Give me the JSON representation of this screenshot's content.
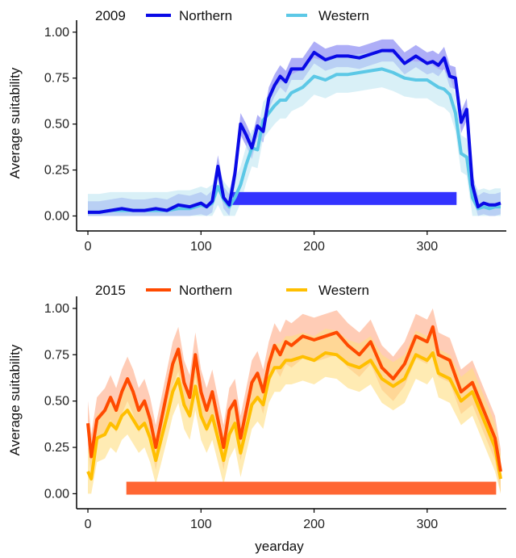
{
  "chart_data": [
    {
      "type": "line",
      "panel_label": "2009",
      "ylabel": "Average suitability",
      "xlabel": "",
      "xlim": [
        -10,
        370
      ],
      "ylim": [
        -0.02,
        1.03
      ],
      "xticks": [
        0,
        100,
        200,
        300
      ],
      "yticks": [
        0.0,
        0.25,
        0.5,
        0.75,
        1.0
      ],
      "ytick_labels": [
        "0.00",
        "0.25",
        "0.50",
        "0.75",
        "1.00"
      ],
      "legend_position": "top",
      "period_bar": {
        "start": 128,
        "end": 326,
        "y": 0.095,
        "color": "#3333ff"
      },
      "series": [
        {
          "name": "Northern",
          "color": "#0a0ae6",
          "band_color": "#6b6bf0",
          "x": [
            0,
            10,
            20,
            30,
            40,
            50,
            60,
            70,
            80,
            90,
            100,
            105,
            110,
            115,
            120,
            125,
            130,
            135,
            140,
            145,
            150,
            155,
            160,
            165,
            170,
            175,
            180,
            190,
            200,
            210,
            220,
            230,
            240,
            250,
            260,
            270,
            280,
            290,
            300,
            305,
            310,
            315,
            320,
            325,
            330,
            335,
            340,
            345,
            350,
            355,
            360,
            365
          ],
          "y": [
            0.02,
            0.02,
            0.03,
            0.04,
            0.03,
            0.03,
            0.04,
            0.03,
            0.06,
            0.05,
            0.07,
            0.05,
            0.08,
            0.27,
            0.1,
            0.06,
            0.23,
            0.5,
            0.44,
            0.37,
            0.49,
            0.46,
            0.64,
            0.71,
            0.76,
            0.73,
            0.8,
            0.8,
            0.89,
            0.85,
            0.87,
            0.87,
            0.86,
            0.88,
            0.9,
            0.9,
            0.83,
            0.87,
            0.83,
            0.84,
            0.82,
            0.86,
            0.76,
            0.75,
            0.51,
            0.58,
            0.17,
            0.05,
            0.07,
            0.06,
            0.06,
            0.07
          ],
          "band_width": 0.06
        },
        {
          "name": "Western",
          "color": "#5cc8e6",
          "band_color": "#bfe6f2",
          "x": [
            0,
            10,
            20,
            30,
            40,
            50,
            60,
            70,
            80,
            90,
            100,
            105,
            110,
            115,
            120,
            125,
            130,
            135,
            140,
            145,
            150,
            155,
            160,
            165,
            170,
            175,
            180,
            190,
            200,
            210,
            220,
            230,
            240,
            250,
            260,
            270,
            280,
            290,
            300,
            305,
            310,
            315,
            320,
            325,
            330,
            335,
            340,
            345,
            350,
            355,
            360,
            365
          ],
          "y": [
            0.02,
            0.02,
            0.03,
            0.03,
            0.03,
            0.03,
            0.03,
            0.03,
            0.04,
            0.04,
            0.06,
            0.05,
            0.07,
            0.16,
            0.09,
            0.05,
            0.1,
            0.17,
            0.28,
            0.37,
            0.36,
            0.52,
            0.56,
            0.6,
            0.63,
            0.63,
            0.67,
            0.7,
            0.76,
            0.74,
            0.77,
            0.77,
            0.78,
            0.79,
            0.8,
            0.78,
            0.75,
            0.74,
            0.74,
            0.72,
            0.7,
            0.69,
            0.66,
            0.56,
            0.34,
            0.32,
            0.1,
            0.04,
            0.05,
            0.04,
            0.05,
            0.05
          ],
          "band_width": 0.1
        }
      ]
    },
    {
      "type": "line",
      "panel_label": "2015",
      "ylabel": "Average suitability",
      "xlabel": "yearday",
      "xlim": [
        -10,
        370
      ],
      "ylim": [
        -0.02,
        1.03
      ],
      "xticks": [
        0,
        100,
        200,
        300
      ],
      "yticks": [
        0.0,
        0.25,
        0.5,
        0.75,
        1.0
      ],
      "ytick_labels": [
        "0.00",
        "0.25",
        "0.50",
        "0.75",
        "1.00"
      ],
      "legend_position": "top",
      "period_bar": {
        "start": 34,
        "end": 361,
        "y": 0.03,
        "color": "#ff6633"
      },
      "series": [
        {
          "name": "Northern",
          "color": "#ff4a00",
          "band_color": "#ffa27a",
          "x": [
            0,
            3,
            8,
            15,
            20,
            25,
            30,
            35,
            40,
            45,
            50,
            55,
            60,
            65,
            70,
            75,
            80,
            85,
            90,
            95,
            100,
            105,
            110,
            115,
            120,
            125,
            130,
            135,
            140,
            145,
            150,
            155,
            160,
            165,
            170,
            175,
            180,
            190,
            200,
            210,
            220,
            230,
            240,
            250,
            260,
            270,
            280,
            290,
            300,
            305,
            310,
            320,
            330,
            340,
            350,
            360,
            365
          ],
          "y": [
            0.38,
            0.2,
            0.4,
            0.45,
            0.52,
            0.45,
            0.55,
            0.62,
            0.55,
            0.45,
            0.5,
            0.4,
            0.25,
            0.4,
            0.55,
            0.7,
            0.78,
            0.6,
            0.52,
            0.75,
            0.55,
            0.45,
            0.55,
            0.4,
            0.25,
            0.45,
            0.5,
            0.3,
            0.45,
            0.6,
            0.65,
            0.55,
            0.7,
            0.8,
            0.75,
            0.82,
            0.8,
            0.85,
            0.83,
            0.85,
            0.87,
            0.8,
            0.75,
            0.82,
            0.68,
            0.62,
            0.7,
            0.85,
            0.82,
            0.9,
            0.75,
            0.72,
            0.55,
            0.6,
            0.45,
            0.3,
            0.12
          ],
          "band_width": 0.12
        },
        {
          "name": "Western",
          "color": "#ffbf00",
          "band_color": "#ffdd80",
          "x": [
            0,
            3,
            8,
            15,
            20,
            25,
            30,
            35,
            40,
            45,
            50,
            55,
            60,
            65,
            70,
            75,
            80,
            85,
            90,
            95,
            100,
            105,
            110,
            115,
            120,
            125,
            130,
            135,
            140,
            145,
            150,
            155,
            160,
            165,
            170,
            175,
            180,
            190,
            200,
            210,
            220,
            230,
            240,
            250,
            260,
            270,
            280,
            290,
            300,
            305,
            310,
            320,
            330,
            340,
            350,
            360,
            365
          ],
          "y": [
            0.12,
            0.08,
            0.3,
            0.32,
            0.38,
            0.35,
            0.42,
            0.45,
            0.4,
            0.35,
            0.38,
            0.3,
            0.18,
            0.3,
            0.42,
            0.55,
            0.62,
            0.48,
            0.42,
            0.58,
            0.42,
            0.35,
            0.42,
            0.3,
            0.18,
            0.32,
            0.38,
            0.22,
            0.35,
            0.48,
            0.52,
            0.48,
            0.62,
            0.68,
            0.68,
            0.72,
            0.72,
            0.74,
            0.72,
            0.76,
            0.75,
            0.7,
            0.68,
            0.72,
            0.62,
            0.58,
            0.62,
            0.75,
            0.72,
            0.76,
            0.65,
            0.62,
            0.5,
            0.55,
            0.4,
            0.25,
            0.08
          ],
          "band_width": 0.13
        }
      ]
    }
  ]
}
